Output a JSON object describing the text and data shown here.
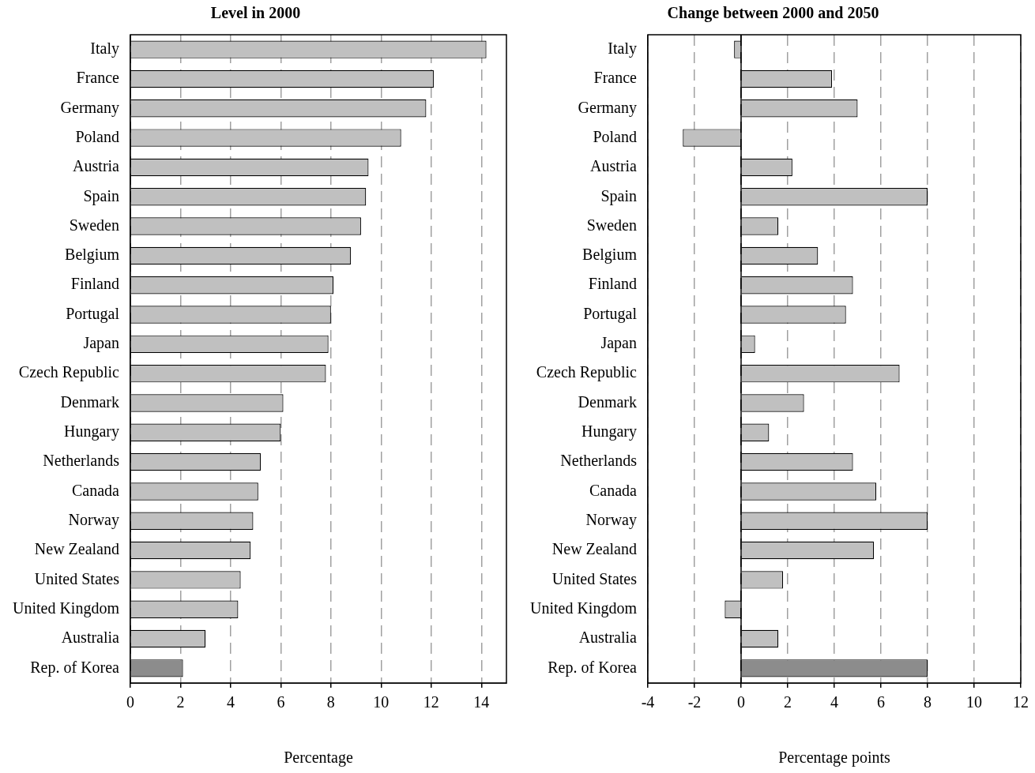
{
  "chart_data": [
    {
      "type": "bar",
      "orientation": "horizontal",
      "title": "Level in 2000",
      "xlabel": "Percentage",
      "categories": [
        "Italy",
        "France",
        "Germany",
        "Poland",
        "Austria",
        "Spain",
        "Sweden",
        "Belgium",
        "Finland",
        "Portugal",
        "Japan",
        "Czech Republic",
        "Denmark",
        "Hungary",
        "Netherlands",
        "Canada",
        "Norway",
        "New Zealand",
        "United States",
        "United Kingdom",
        "Australia",
        "Rep. of Korea"
      ],
      "values": [
        14.2,
        12.1,
        11.8,
        10.8,
        9.5,
        9.4,
        9.2,
        8.8,
        8.1,
        8.0,
        7.9,
        7.8,
        6.1,
        6.0,
        5.2,
        5.1,
        4.9,
        4.8,
        4.4,
        4.3,
        3.0,
        2.1
      ],
      "colors": [
        "#c0c0c0",
        "#c0c0c0",
        "#c0c0c0",
        "#c0c0c0",
        "#c0c0c0",
        "#c0c0c0",
        "#c0c0c0",
        "#c0c0c0",
        "#c0c0c0",
        "#c0c0c0",
        "#c0c0c0",
        "#c0c0c0",
        "#c0c0c0",
        "#c0c0c0",
        "#c0c0c0",
        "#c0c0c0",
        "#c0c0c0",
        "#c0c0c0",
        "#c0c0c0",
        "#c0c0c0",
        "#c0c0c0",
        "#8c8c8c"
      ],
      "xlim": [
        0,
        15
      ],
      "xticks": [
        0,
        2,
        4,
        6,
        8,
        10,
        12,
        14
      ],
      "grid": "x"
    },
    {
      "type": "bar",
      "orientation": "horizontal",
      "title": "Change between 2000 and 2050",
      "xlabel": "Percentage points",
      "categories": [
        "Italy",
        "France",
        "Germany",
        "Poland",
        "Austria",
        "Spain",
        "Sweden",
        "Belgium",
        "Finland",
        "Portugal",
        "Japan",
        "Czech Republic",
        "Denmark",
        "Hungary",
        "Netherlands",
        "Canada",
        "Norway",
        "New Zealand",
        "United States",
        "United Kingdom",
        "Australia",
        "Rep. of Korea"
      ],
      "values": [
        -0.3,
        3.9,
        5.0,
        -2.5,
        2.2,
        8.0,
        1.6,
        3.3,
        4.8,
        4.5,
        0.6,
        6.8,
        2.7,
        1.2,
        4.8,
        5.8,
        8.0,
        5.7,
        1.8,
        -0.7,
        1.6,
        8.0
      ],
      "colors": [
        "#c0c0c0",
        "#c0c0c0",
        "#c0c0c0",
        "#c0c0c0",
        "#c0c0c0",
        "#c0c0c0",
        "#c0c0c0",
        "#c0c0c0",
        "#c0c0c0",
        "#c0c0c0",
        "#c0c0c0",
        "#c0c0c0",
        "#c0c0c0",
        "#c0c0c0",
        "#c0c0c0",
        "#c0c0c0",
        "#c0c0c0",
        "#c0c0c0",
        "#c0c0c0",
        "#c0c0c0",
        "#c0c0c0",
        "#8c8c8c"
      ],
      "xlim": [
        -4,
        12
      ],
      "xticks": [
        -4,
        -2,
        0,
        2,
        4,
        6,
        8,
        10,
        12
      ],
      "grid": "x",
      "ref_lines": [
        {
          "axis": "x",
          "value": 0,
          "color": "#000000"
        }
      ]
    }
  ]
}
